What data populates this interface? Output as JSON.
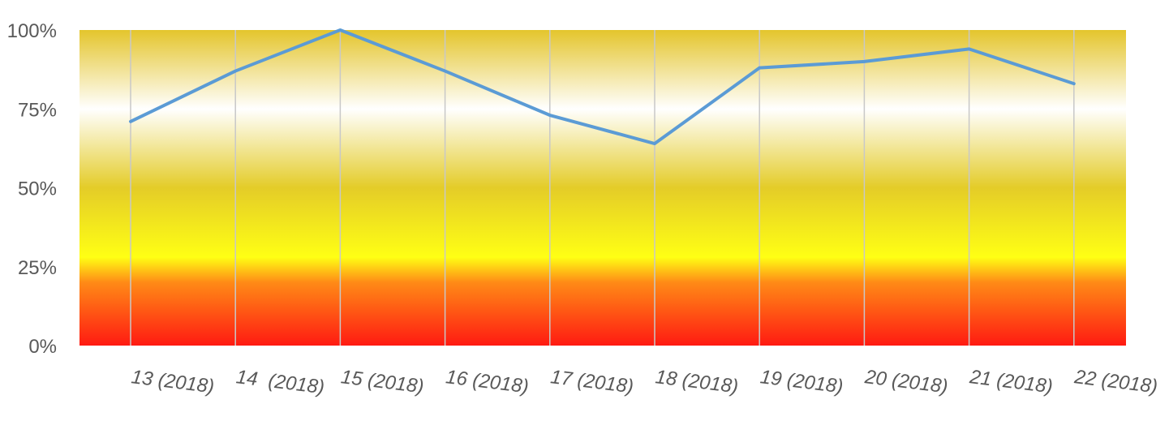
{
  "chart_data": {
    "type": "line",
    "title": "",
    "xlabel": "",
    "ylabel": "",
    "categories": [
      "13 (2018)",
      "14  (2018)",
      "15 (2018)",
      "16 (2018)",
      "17 (2018)",
      "18 (2018)",
      "19 (2018)",
      "20 (2018)",
      "21 (2018)",
      "22 (2018)"
    ],
    "series": [
      {
        "values": [
          0.71,
          0.87,
          1.0,
          0.87,
          0.73,
          0.64,
          0.88,
          0.9,
          0.94,
          0.83
        ]
      }
    ],
    "ylim": [
      0,
      1
    ],
    "y_ticks": [
      {
        "value": 0,
        "label": "0%"
      },
      {
        "value": 0.25,
        "label": "25%"
      },
      {
        "value": 0.5,
        "label": "50%"
      },
      {
        "value": 0.75,
        "label": "75%"
      },
      {
        "value": 1,
        "label": "100%"
      }
    ],
    "grid": "vertical-at-categories",
    "legend": "none",
    "colors": {
      "line": "#5B9BD5",
      "gridline": "#C8C8C8",
      "tick_text": "#595959",
      "background_gradient": [
        "#FF1A12",
        "#FF7F14",
        "#FFFF14",
        "#E6CE28",
        "#FFFFFF",
        "#E6C82C"
      ]
    }
  }
}
